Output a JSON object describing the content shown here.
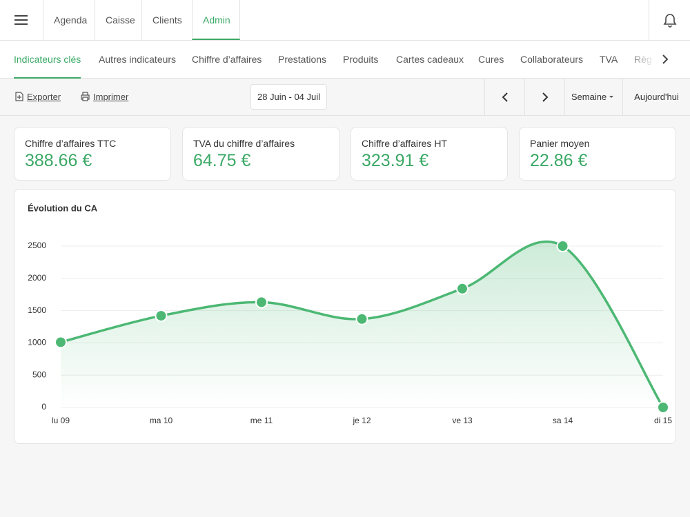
{
  "top_nav": {
    "tabs": [
      "Agenda",
      "Caisse",
      "Clients",
      "Admin"
    ],
    "active": 3
  },
  "sub_nav": {
    "tabs": [
      "Indicateurs clés",
      "Autres indicateurs",
      "Chiffre d’affaires",
      "Prestations",
      "Produits",
      "Cartes cadeaux",
      "Cures",
      "Collaborateurs",
      "TVA",
      "Règ"
    ],
    "active": 0
  },
  "toolbar": {
    "export": "Exporter",
    "print": "Imprimer",
    "date_range": "28 Juin - 04 Juil",
    "period": "Semaine",
    "today": "Aujourd'hui"
  },
  "kpis": [
    {
      "label": "Chiffre d’affaires TTC",
      "value": "388.66 €"
    },
    {
      "label": "TVA du chiffre d’affaires",
      "value": "64.75 €"
    },
    {
      "label": "Chiffre d’affaires HT",
      "value": "323.91 €"
    },
    {
      "label": "Panier moyen",
      "value": "22.86 €"
    }
  ],
  "chart_data": {
    "type": "line",
    "title": "Évolution du CA",
    "categories": [
      "lu 09",
      "ma 10",
      "me 11",
      "je 12",
      "ve 13",
      "sa 14",
      "di 15"
    ],
    "values": [
      1010,
      1420,
      1630,
      1370,
      1840,
      2500,
      0
    ],
    "color": "#4cb874",
    "ylim": [
      0,
      2500
    ],
    "yticks": [
      0,
      500,
      1000,
      1500,
      2000,
      2500
    ],
    "grid": true,
    "smooth": true
  }
}
